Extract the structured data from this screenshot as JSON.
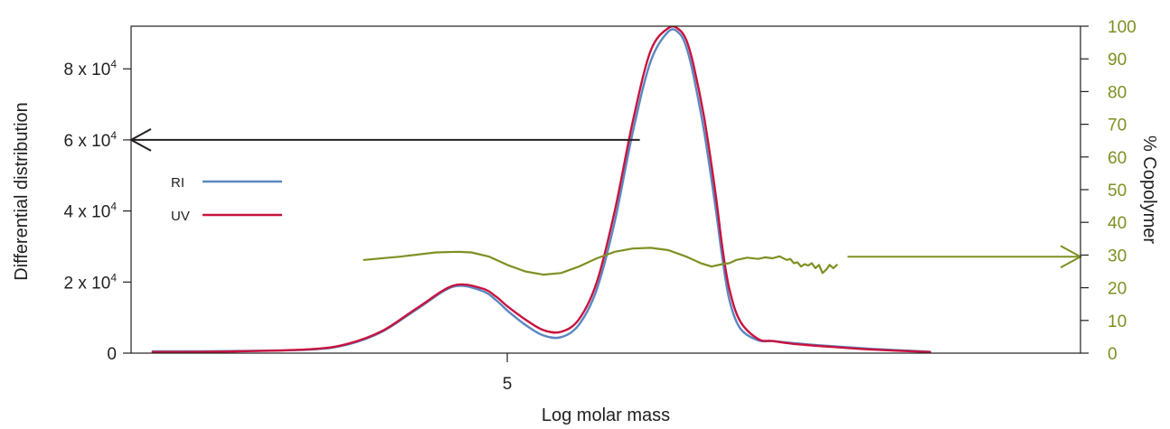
{
  "colors": {
    "ri": "#5b87c0",
    "uv": "#c8133f",
    "copolymer": "#7f8f22",
    "axis": "#231f20"
  },
  "chart_data": {
    "type": "line",
    "xlabel": "Log molar mass",
    "ylabel": "Differential distribution",
    "y2label": "% Copolymer",
    "xlim": [
      3.95,
      6.6
    ],
    "ylim": [
      0,
      92000
    ],
    "y2lim": [
      0,
      100
    ],
    "x_ticks": [
      {
        "value": 5,
        "label": "5"
      }
    ],
    "y_ticks": [
      {
        "value": 0,
        "base": "0",
        "exp": ""
      },
      {
        "value": 20000,
        "base": "2 x 10",
        "exp": "4"
      },
      {
        "value": 40000,
        "base": "4 x 10",
        "exp": "4"
      },
      {
        "value": 60000,
        "base": "6 x 10",
        "exp": "4"
      },
      {
        "value": 80000,
        "base": "8 x 10",
        "exp": "4"
      }
    ],
    "y2_ticks": [
      0,
      10,
      20,
      30,
      40,
      50,
      60,
      70,
      80,
      90,
      100
    ],
    "legend": [
      {
        "name": "RI",
        "color_key": "ri"
      },
      {
        "name": "UV",
        "color_key": "uv"
      }
    ],
    "series": [
      {
        "name": "RI",
        "axis": "left",
        "x": [
          4.01,
          4.25,
          4.45,
          4.55,
          4.65,
          4.75,
          4.85,
          4.93,
          4.97,
          5.0,
          5.05,
          5.1,
          5.15,
          5.2,
          5.25,
          5.3,
          5.35,
          5.4,
          5.45,
          5.48,
          5.5,
          5.52,
          5.55,
          5.58,
          5.6,
          5.62,
          5.65,
          5.7,
          5.74,
          5.8,
          5.9,
          6.02,
          6.18
        ],
        "y": [
          500,
          600,
          1000,
          2300,
          6000,
          12500,
          18700,
          17500,
          14800,
          12000,
          8000,
          5000,
          4500,
          8000,
          18000,
          37000,
          62000,
          82000,
          90500,
          90000,
          86000,
          78000,
          62000,
          42000,
          27000,
          15000,
          7000,
          3600,
          3400,
          2800,
          2000,
          1200,
          400
        ]
      },
      {
        "name": "UV",
        "axis": "left",
        "x": [
          4.01,
          4.25,
          4.45,
          4.55,
          4.65,
          4.75,
          4.85,
          4.93,
          4.97,
          5.0,
          5.05,
          5.1,
          5.15,
          5.2,
          5.25,
          5.3,
          5.35,
          5.4,
          5.45,
          5.48,
          5.5,
          5.52,
          5.55,
          5.58,
          5.6,
          5.62,
          5.65,
          5.7,
          5.74,
          5.8,
          5.9,
          6.02,
          6.18
        ],
        "y": [
          300,
          500,
          1100,
          2500,
          6200,
          12800,
          19000,
          18200,
          15800,
          13200,
          9500,
          6500,
          6000,
          9500,
          20000,
          40000,
          65000,
          85000,
          91500,
          91000,
          88000,
          81000,
          66000,
          46000,
          30000,
          18000,
          9000,
          4000,
          3400,
          2600,
          1800,
          1000,
          300
        ]
      },
      {
        "name": "% Copolymer",
        "axis": "right",
        "x": [
          4.6,
          4.7,
          4.8,
          4.86,
          4.9,
          4.95,
          5.0,
          5.05,
          5.1,
          5.15,
          5.2,
          5.25,
          5.3,
          5.35,
          5.4,
          5.45,
          5.5,
          5.54,
          5.57,
          5.6,
          5.62,
          5.64,
          5.67,
          5.7,
          5.72,
          5.74,
          5.76,
          5.78,
          5.79,
          5.8,
          5.81,
          5.82,
          5.83,
          5.84,
          5.85,
          5.86,
          5.87,
          5.88,
          5.89,
          5.9,
          5.91,
          5.92
        ],
        "y": [
          28.5,
          29.5,
          30.8,
          31,
          30.8,
          29.5,
          27,
          25,
          24,
          24.5,
          26.5,
          29,
          31,
          32,
          32.2,
          31.5,
          29.5,
          27.5,
          26.5,
          27.2,
          27.5,
          28.5,
          29.2,
          28.8,
          29.3,
          29.0,
          29.6,
          28.5,
          28.8,
          27.5,
          27.8,
          26.5,
          27.2,
          26.8,
          27.5,
          26.0,
          27.0,
          24.5,
          25.5,
          27.0,
          26.0,
          27.0
        ]
      }
    ],
    "annotations": [
      {
        "type": "arrow",
        "direction": "left",
        "from": [
          5.37,
          60000
        ],
        "to": [
          3.95,
          60000
        ],
        "color_key": "axis"
      },
      {
        "type": "arrow",
        "direction": "right",
        "from": [
          5.95,
          29.5
        ],
        "to": [
          6.6,
          29.5
        ],
        "color_key": "copolymer",
        "axis": "right"
      }
    ]
  }
}
